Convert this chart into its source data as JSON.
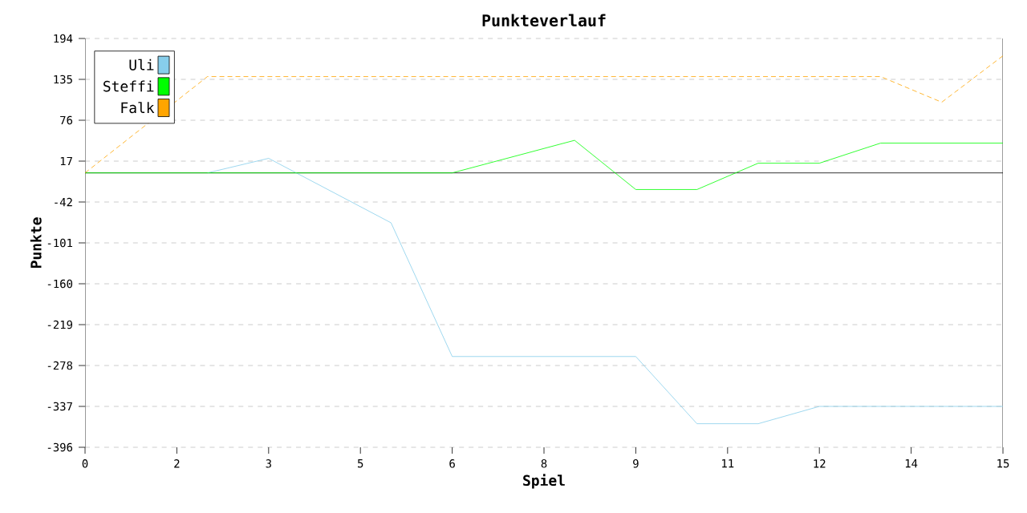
{
  "chart_data": {
    "type": "line",
    "title": "Punkteverlauf",
    "xlabel": "Spiel",
    "ylabel": "Punkte",
    "xlim": [
      0,
      15
    ],
    "ylim": [
      -396,
      194
    ],
    "xticks": [
      0,
      {
        "value": 1.5,
        "label": "2"
      },
      3,
      {
        "value": 4.5,
        "label": "5"
      },
      6,
      {
        "value": 7.5,
        "label": "8"
      },
      9,
      {
        "value": 10.5,
        "label": "11"
      },
      12,
      {
        "value": 13.5,
        "label": "14"
      },
      15
    ],
    "yticks": [
      -396,
      -337,
      -278,
      -219,
      -160,
      -101,
      -42,
      17,
      76,
      135,
      194
    ],
    "grid": "y",
    "legend": "top left",
    "ref_lines": [
      {
        "axis": "y",
        "value": 0,
        "color": "#000000"
      }
    ],
    "series": [
      {
        "name": "Uli",
        "color": "#87ceeb",
        "x": [
          2,
          3,
          5,
          6,
          9,
          10,
          11,
          12,
          15
        ],
        "values": [
          0,
          21,
          -72,
          -265,
          -265,
          -362,
          -362,
          -337,
          -337
        ]
      },
      {
        "name": "Steffi",
        "color": "#00ff00",
        "x": [
          0,
          6,
          8,
          9,
          10,
          11,
          12,
          13,
          15
        ],
        "values": [
          0,
          0,
          47,
          -24,
          -24,
          14,
          14,
          43,
          43
        ]
      },
      {
        "name": "Falk",
        "color": "#ffa500",
        "line_style": "dashed",
        "x": [
          0,
          2,
          13,
          14,
          15
        ],
        "values": [
          0,
          139,
          139,
          102,
          169
        ]
      }
    ]
  }
}
